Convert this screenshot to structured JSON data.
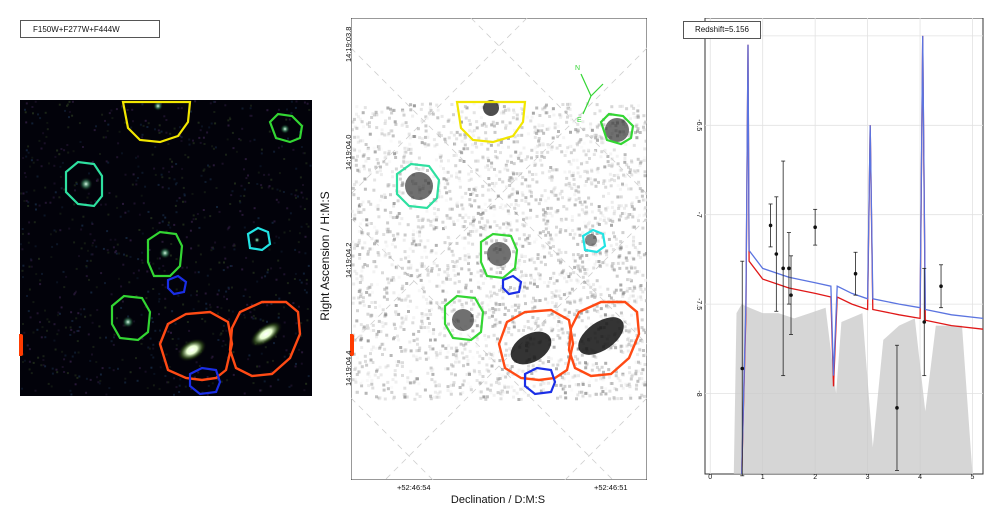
{
  "panel_left": {
    "legend_label": "F150W+F277W+F444W"
  },
  "panel_middle": {
    "axis_title_y": "Right Ascension / H:M:S",
    "axis_title_x": "Declination / D:M:S",
    "y_ticks": [
      "14:19:03.8",
      "14:19:04.0",
      "14:19:04.2",
      "14:19:04.4"
    ],
    "x_ticks": [
      "+52:46:54",
      "+52:46:51"
    ],
    "compass_north": "N",
    "compass_east": "E"
  },
  "panel_right": {
    "redshift_label": "Redshift=5.156"
  },
  "colors": {
    "yellow": "#f2e600",
    "green": "#33d633",
    "teal": "#2ee0a0",
    "cyan": "#22e4e4",
    "blue": "#1a2ee6",
    "orange": "#ff4a14",
    "model_red": "#e01818",
    "model_blue": "#5b74e0",
    "error_gray": "#c8c8c8"
  },
  "chart_data": {
    "type": "scatter",
    "title": "",
    "xlabel": "",
    "ylabel": "",
    "xlim": [
      -0.1,
      5.2
    ],
    "ylim": [
      -8.45,
      -5.9
    ],
    "xticks": [
      "0",
      "1",
      "2",
      "3",
      "4",
      "5"
    ],
    "yticks": [
      "-6",
      "-6.5",
      "-7",
      "-7.5",
      "-8"
    ],
    "grid": true,
    "series": [
      {
        "kind": "points_with_errors",
        "x": [
          0.61,
          1.15,
          1.26,
          1.39,
          1.5,
          1.54,
          2.0,
          2.77,
          3.56,
          4.08,
          4.4
        ],
        "y": [
          -7.86,
          -7.06,
          -7.22,
          -7.3,
          -7.3,
          -7.45,
          -7.07,
          -7.33,
          -8.08,
          -7.6,
          -7.4
        ],
        "yerr": [
          0.6,
          0.12,
          0.32,
          0.6,
          0.2,
          0.22,
          0.1,
          0.12,
          0.35,
          0.3,
          0.12
        ]
      }
    ]
  }
}
